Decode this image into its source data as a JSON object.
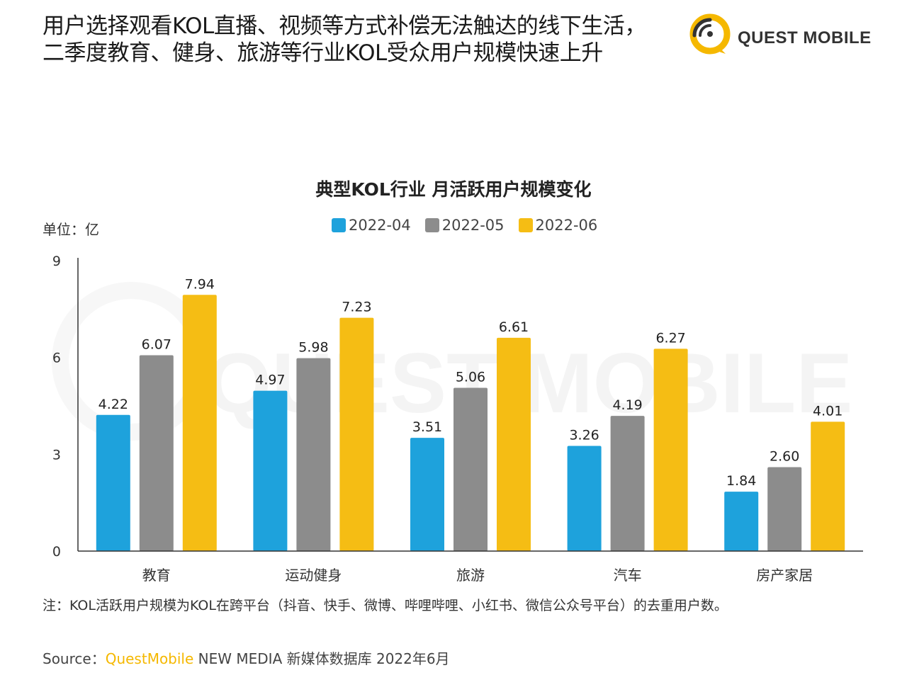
{
  "header": {
    "line1": "用户选择观看KOL直播、视频等方式补偿无法触达的线下生活，",
    "line2": "二季度教育、健身、旅游等行业KOL受众用户规模快速上升"
  },
  "brand": {
    "name": "QUEST MOBILE",
    "watermark": "QUEST MOBILE"
  },
  "unit_label": "单位：亿",
  "footnote": "注：KOL活跃用户规模为KOL在跨平台（抖音、快手、微博、哔哩哔哩、小红书、微信公众号平台）的去重用户数。",
  "source": {
    "prefix": "Source：",
    "brand": "QuestMobile",
    "rest": "NEW MEDIA 新媒体数据库 2022年6月"
  },
  "colors": {
    "series_2022_04": "#1ea2dc",
    "series_2022_05": "#8c8c8c",
    "series_2022_06": "#f5bd14",
    "brand_yellow": "#f5b800"
  },
  "chart_data": {
    "type": "bar",
    "title": "典型KOL行业 月活跃用户规模变化",
    "ylabel": "单位：亿",
    "categories": [
      "教育",
      "运动健身",
      "旅游",
      "汽车",
      "房产家居"
    ],
    "series": [
      {
        "name": "2022-04",
        "values": [
          4.22,
          4.97,
          3.51,
          3.26,
          1.84
        ],
        "labels": [
          "4.22",
          "4.97",
          "3.51",
          "3.26",
          "1.84"
        ]
      },
      {
        "name": "2022-05",
        "values": [
          6.07,
          5.98,
          5.06,
          4.19,
          2.6
        ],
        "labels": [
          "6.07",
          "5.98",
          "5.06",
          "4.19",
          "2.60"
        ]
      },
      {
        "name": "2022-06",
        "values": [
          7.94,
          7.23,
          6.61,
          6.27,
          4.01
        ],
        "labels": [
          "7.94",
          "7.23",
          "6.61",
          "6.27",
          "4.01"
        ]
      }
    ],
    "ylim": [
      0,
      9
    ],
    "yticks": [
      "0",
      "3",
      "6",
      "9"
    ],
    "legend_position": "top-center",
    "grid": false,
    "data_labels": true
  }
}
